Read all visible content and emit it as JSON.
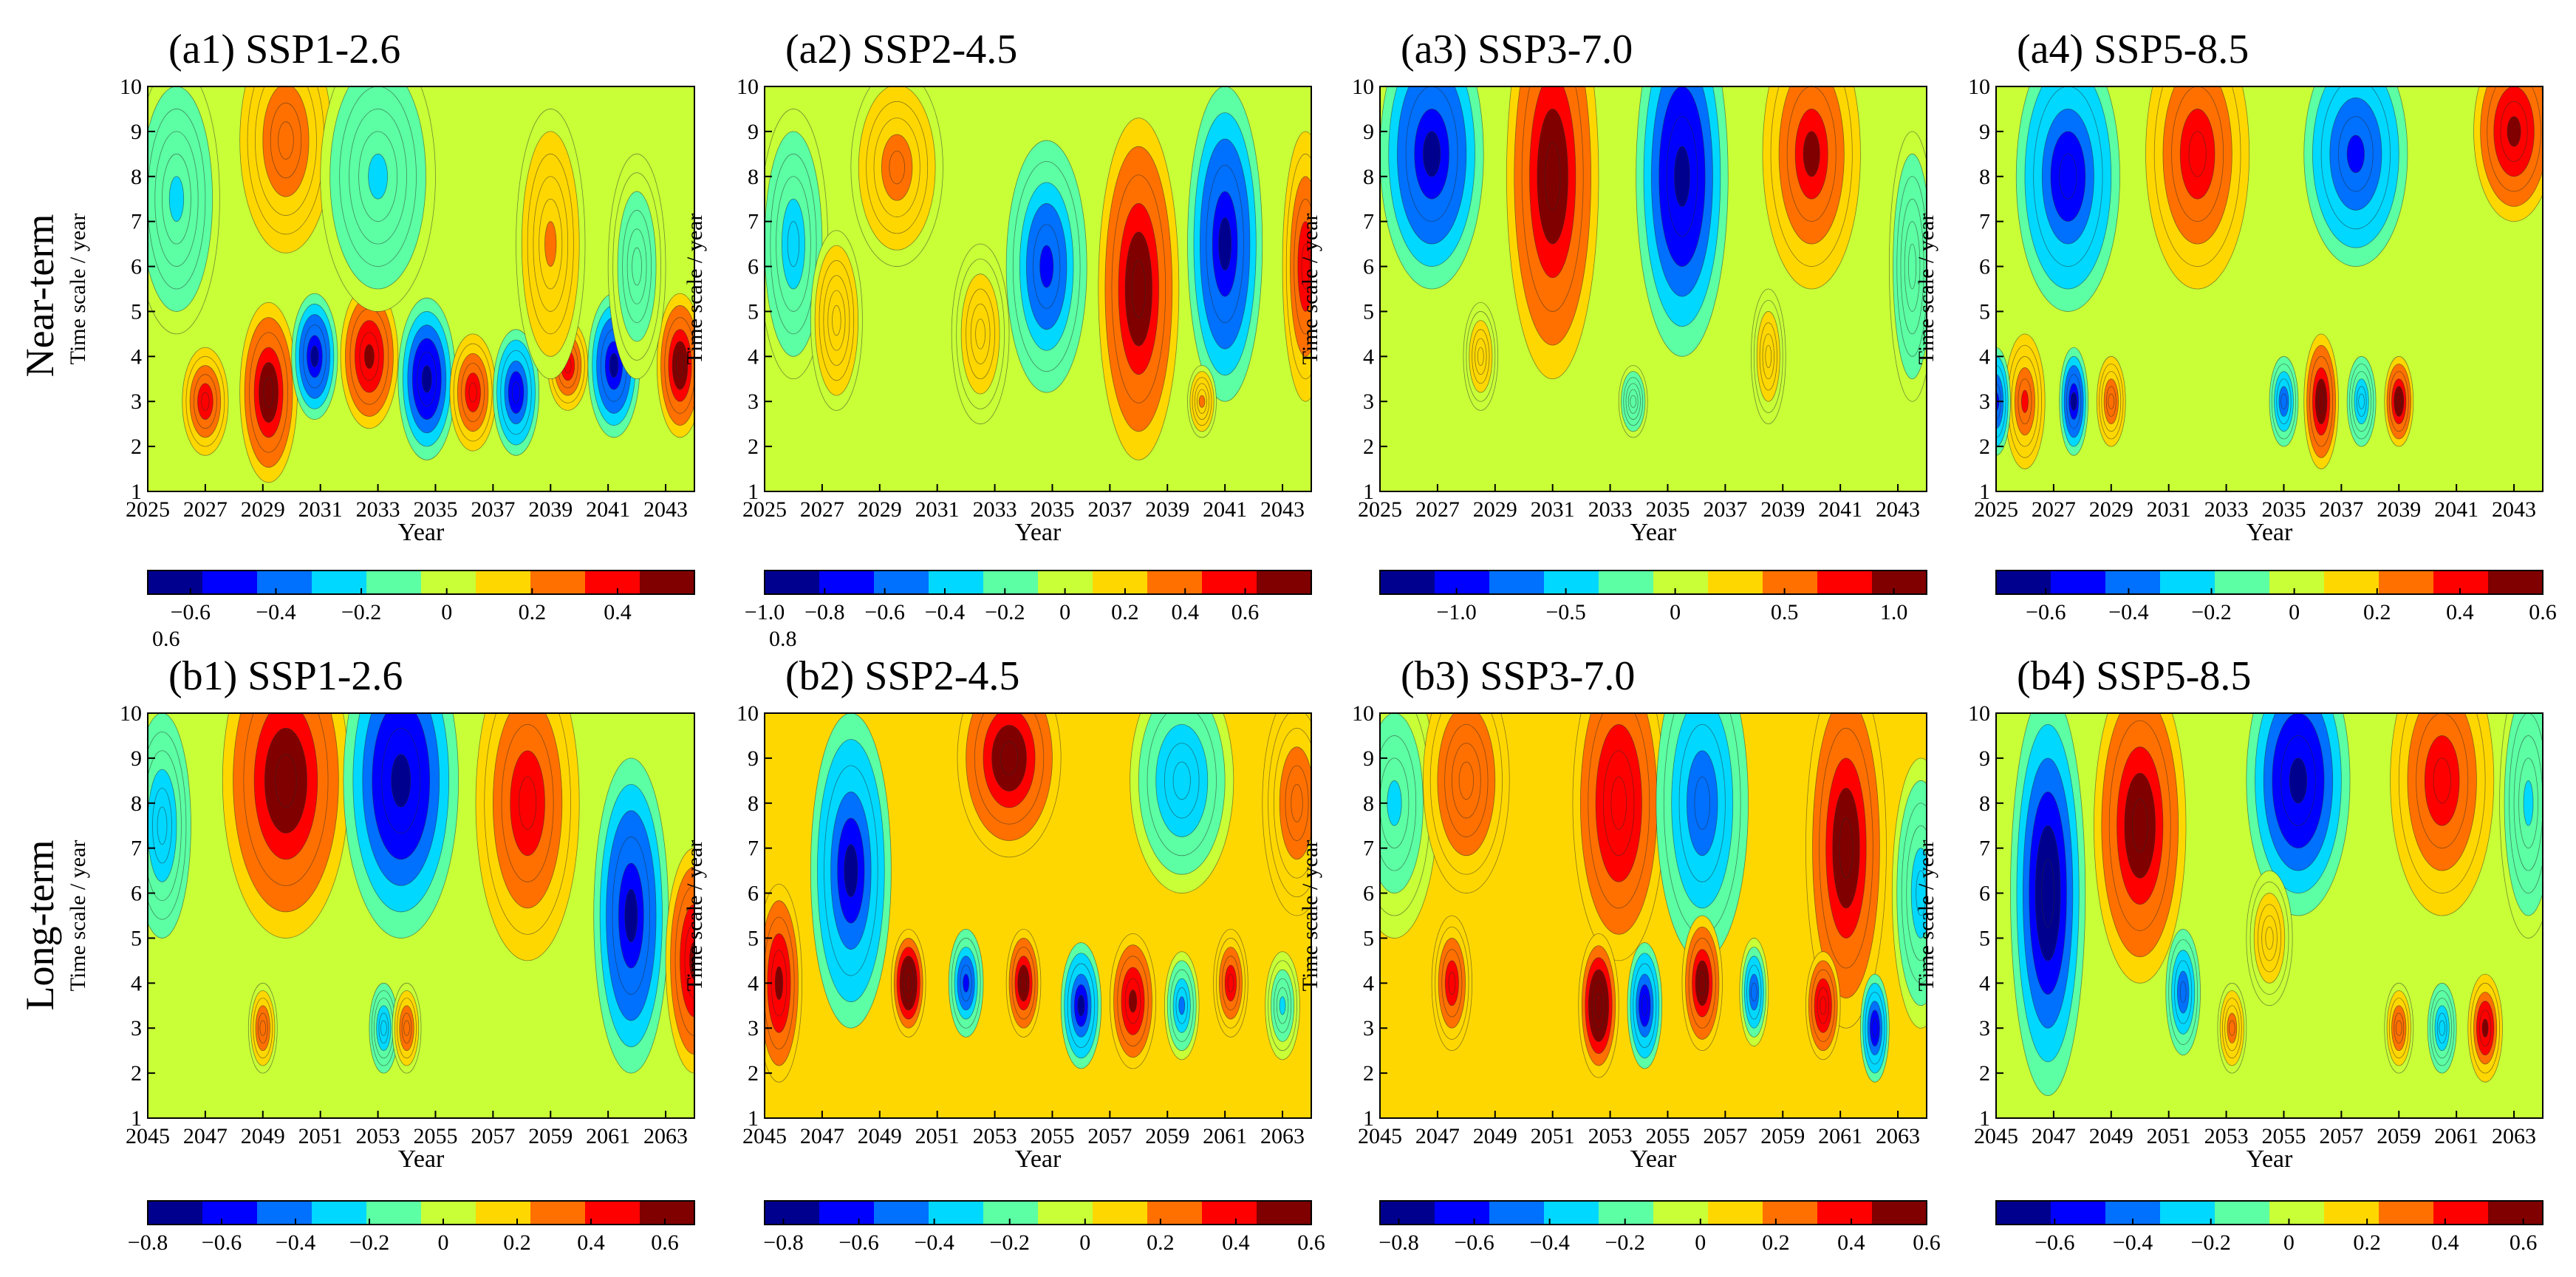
{
  "row_labels": [
    "Near-term",
    "Long-term"
  ],
  "y_axis_label": "Time scale / year",
  "x_axis_label": "Year",
  "colormap": [
    "#00008f",
    "#0000ff",
    "#0070ff",
    "#00d8ff",
    "#5cffa3",
    "#c8ff37",
    "#ffd700",
    "#ff7000",
    "#ff0000",
    "#800000"
  ],
  "chart_data": [
    {
      "id": "a1",
      "type": "heatmap",
      "title": "(a1) SSP1-2.6",
      "xlabel": "Year",
      "ylabel": "Time scale / year",
      "x_ticks": [
        "2025",
        "2027",
        "2029",
        "2031",
        "2033",
        "2035",
        "2037",
        "2039",
        "2041",
        "2043"
      ],
      "y_ticks": [
        "1",
        "2",
        "3",
        "4",
        "5",
        "6",
        "7",
        "8",
        "9",
        "10"
      ],
      "xlim": [
        2025,
        2044
      ],
      "ylim": [
        1,
        10
      ],
      "colorbar": {
        "ticks": [
          "−0.6",
          "−0.4",
          "−0.2",
          "0",
          "0.2",
          "0.4"
        ],
        "tick_values": [
          -0.6,
          -0.4,
          -0.2,
          0,
          0.2,
          0.4
        ],
        "range": [
          -0.7,
          0.58
        ],
        "extra_label": "0.6"
      },
      "features": [
        [
          2027.0,
          3.0,
          0.8,
          1.2,
          0.4
        ],
        [
          2029.2,
          3.2,
          1.0,
          2.0,
          0.55
        ],
        [
          2030.8,
          4.0,
          0.8,
          1.4,
          -0.6
        ],
        [
          2032.7,
          4.0,
          1.0,
          1.6,
          0.5
        ],
        [
          2034.7,
          3.5,
          1.0,
          1.8,
          -0.65
        ],
        [
          2036.3,
          3.2,
          0.8,
          1.3,
          0.45
        ],
        [
          2037.8,
          3.2,
          0.8,
          1.4,
          -0.55
        ],
        [
          2039.6,
          3.8,
          0.7,
          1.0,
          0.4
        ],
        [
          2041.2,
          3.8,
          0.9,
          1.6,
          -0.6
        ],
        [
          2043.5,
          3.8,
          0.8,
          1.6,
          0.55
        ],
        [
          2026.0,
          7.5,
          1.5,
          3.0,
          -0.2
        ],
        [
          2029.8,
          8.8,
          1.6,
          2.5,
          0.3
        ],
        [
          2033.0,
          8.0,
          2.0,
          3.0,
          -0.2
        ],
        [
          2039.0,
          6.5,
          1.2,
          3.0,
          0.2
        ],
        [
          2042.0,
          6.0,
          1.0,
          2.5,
          -0.15
        ]
      ]
    },
    {
      "id": "a2",
      "type": "heatmap",
      "title": "(a2) SSP2-4.5",
      "xlabel": "Year",
      "ylabel": "Time scale / year",
      "x_ticks": [
        "2025",
        "2027",
        "2029",
        "2031",
        "2033",
        "2035",
        "2037",
        "2039",
        "2041",
        "2043"
      ],
      "y_ticks": [
        "1",
        "2",
        "3",
        "4",
        "5",
        "6",
        "7",
        "8",
        "9",
        "10"
      ],
      "xlim": [
        2025,
        2044
      ],
      "ylim": [
        1,
        10
      ],
      "colorbar": {
        "ticks": [
          "−1.0",
          "−0.8",
          "−0.6",
          "−0.4",
          "−0.2",
          "0",
          "0.2",
          "0.4",
          "0.6"
        ],
        "tick_values": [
          -1.0,
          -0.8,
          -0.6,
          -0.4,
          -0.2,
          0,
          0.2,
          0.4,
          0.6
        ],
        "range": [
          -1.0,
          0.82
        ],
        "extra_label": "0.8"
      },
      "features": [
        [
          2029.6,
          8.2,
          1.6,
          2.2,
          0.35
        ],
        [
          2026.0,
          6.5,
          1.2,
          3.0,
          -0.35
        ],
        [
          2034.8,
          6.0,
          1.4,
          2.8,
          -0.65
        ],
        [
          2038.0,
          5.5,
          1.4,
          3.8,
          0.8
        ],
        [
          2041.0,
          6.5,
          1.3,
          3.5,
          -0.9
        ],
        [
          2043.8,
          6.0,
          0.8,
          3.0,
          0.6
        ],
        [
          2027.5,
          4.8,
          0.9,
          2.0,
          0.25
        ],
        [
          2032.5,
          4.5,
          1.0,
          2.0,
          0.2
        ],
        [
          2040.2,
          3.0,
          0.5,
          0.8,
          0.3
        ]
      ]
    },
    {
      "id": "a3",
      "type": "heatmap",
      "title": "(a3) SSP3-7.0",
      "xlabel": "Year",
      "ylabel": "Time scale / year",
      "x_ticks": [
        "2025",
        "2027",
        "2029",
        "2031",
        "2033",
        "2035",
        "2037",
        "2039",
        "2041",
        "2043"
      ],
      "y_ticks": [
        "1",
        "2",
        "3",
        "4",
        "5",
        "6",
        "7",
        "8",
        "9",
        "10"
      ],
      "xlim": [
        2025,
        2044
      ],
      "ylim": [
        1,
        10
      ],
      "colorbar": {
        "ticks": [
          "−1.0",
          "−0.5",
          "0",
          "0.5",
          "1.0"
        ],
        "tick_values": [
          -1.0,
          -0.5,
          0,
          0.5,
          1.0
        ],
        "range": [
          -1.35,
          1.15
        ]
      },
      "features": [
        [
          2026.8,
          8.5,
          1.8,
          3.0,
          -1.2
        ],
        [
          2031.0,
          8.0,
          1.6,
          4.5,
          1.1
        ],
        [
          2035.5,
          8.0,
          1.6,
          4.0,
          -1.25
        ],
        [
          2040.0,
          8.5,
          1.7,
          3.0,
          0.9
        ],
        [
          2043.5,
          6.0,
          0.8,
          3.0,
          -0.3
        ],
        [
          2028.5,
          4.0,
          0.6,
          1.2,
          0.3
        ],
        [
          2033.8,
          3.0,
          0.5,
          0.8,
          -0.3
        ],
        [
          2038.5,
          4.0,
          0.6,
          1.5,
          0.3
        ]
      ]
    },
    {
      "id": "a4",
      "type": "heatmap",
      "title": "(a4) SSP5-8.5",
      "xlabel": "Year",
      "ylabel": "Time scale / year",
      "x_ticks": [
        "2025",
        "2027",
        "2029",
        "2031",
        "2033",
        "2035",
        "2037",
        "2039",
        "2041",
        "2043"
      ],
      "y_ticks": [
        "1",
        "2",
        "3",
        "4",
        "5",
        "6",
        "7",
        "8",
        "9",
        "10"
      ],
      "xlim": [
        2025,
        2044
      ],
      "ylim": [
        1,
        10
      ],
      "colorbar": {
        "ticks": [
          "−0.6",
          "−0.4",
          "−0.2",
          "0",
          "0.2",
          "0.4",
          "0.6"
        ],
        "tick_values": [
          -0.6,
          -0.4,
          -0.2,
          0,
          0.2,
          0.4,
          0.6
        ],
        "range": [
          -0.72,
          0.6
        ]
      },
      "features": [
        [
          2027.5,
          8.0,
          1.8,
          3.0,
          -0.55
        ],
        [
          2032.0,
          8.5,
          1.8,
          3.0,
          0.45
        ],
        [
          2037.5,
          8.5,
          1.8,
          2.5,
          -0.5
        ],
        [
          2043.0,
          9.0,
          1.4,
          2.0,
          0.55
        ],
        [
          2026.0,
          3.0,
          0.7,
          1.5,
          0.35
        ],
        [
          2027.7,
          3.0,
          0.5,
          1.2,
          -0.6
        ],
        [
          2029.0,
          3.0,
          0.5,
          1.0,
          0.3
        ],
        [
          2036.3,
          3.0,
          0.6,
          1.5,
          0.6
        ],
        [
          2039.0,
          3.0,
          0.5,
          1.0,
          0.6
        ],
        [
          2025.0,
          3.0,
          0.5,
          1.2,
          -0.5
        ],
        [
          2035.0,
          3.0,
          0.5,
          1.0,
          -0.4
        ],
        [
          2037.7,
          3.0,
          0.5,
          1.0,
          -0.3
        ]
      ]
    },
    {
      "id": "b1",
      "type": "heatmap",
      "title": "(b1) SSP1-2.6",
      "xlabel": "Year",
      "ylabel": "Time scale / year",
      "x_ticks": [
        "2045",
        "2047",
        "2049",
        "2051",
        "2053",
        "2055",
        "2057",
        "2059",
        "2061",
        "2063"
      ],
      "y_ticks": [
        "1",
        "2",
        "3",
        "4",
        "5",
        "6",
        "7",
        "8",
        "9",
        "10"
      ],
      "xlim": [
        2045,
        2064
      ],
      "ylim": [
        1,
        10
      ],
      "colorbar": {
        "ticks": [
          "−0.8",
          "−0.6",
          "−0.4",
          "−0.2",
          "0",
          "0.2",
          "0.4",
          "0.6"
        ],
        "tick_values": [
          -0.8,
          -0.6,
          -0.4,
          -0.2,
          0,
          0.2,
          0.4,
          0.6
        ],
        "range": [
          -0.8,
          0.68
        ]
      },
      "features": [
        [
          2049.8,
          8.5,
          2.2,
          3.5,
          0.65
        ],
        [
          2053.8,
          8.5,
          2.0,
          3.5,
          -0.75
        ],
        [
          2058.2,
          8.0,
          1.8,
          3.5,
          0.5
        ],
        [
          2061.8,
          5.5,
          1.3,
          3.5,
          -0.7
        ],
        [
          2064.0,
          4.5,
          1.0,
          2.5,
          0.6
        ],
        [
          2045.5,
          7.5,
          1.0,
          2.5,
          -0.3
        ],
        [
          2049.0,
          3.0,
          0.5,
          1.0,
          0.35
        ],
        [
          2053.2,
          3.0,
          0.5,
          1.0,
          -0.3
        ],
        [
          2054.0,
          3.0,
          0.5,
          1.0,
          0.35
        ]
      ]
    },
    {
      "id": "b2",
      "type": "heatmap",
      "title": "(b2) SSP2-4.5",
      "xlabel": "Year",
      "ylabel": "Time scale / year",
      "x_ticks": [
        "2045",
        "2047",
        "2049",
        "2051",
        "2053",
        "2055",
        "2057",
        "2059",
        "2061",
        "2063"
      ],
      "y_ticks": [
        "1",
        "2",
        "3",
        "4",
        "5",
        "6",
        "7",
        "8",
        "9",
        "10"
      ],
      "xlim": [
        2045,
        2064
      ],
      "ylim": [
        1,
        10
      ],
      "colorbar": {
        "ticks": [
          "−0.8",
          "−0.6",
          "−0.4",
          "−0.2",
          "0",
          "0.2",
          "0.4",
          "0.6"
        ],
        "tick_values": [
          -0.8,
          -0.6,
          -0.4,
          -0.2,
          0,
          0.2,
          0.4,
          0.6
        ],
        "range": [
          -0.85,
          0.6
        ]
      },
      "features": [
        [
          2045.5,
          4.0,
          0.8,
          2.2,
          0.5
        ],
        [
          2048.0,
          6.5,
          1.4,
          3.5,
          -0.75
        ],
        [
          2053.5,
          9.0,
          1.8,
          2.2,
          0.55
        ],
        [
          2059.5,
          8.5,
          1.8,
          2.5,
          -0.4
        ],
        [
          2063.5,
          8.0,
          1.2,
          2.5,
          0.25
        ],
        [
          2050.0,
          4.0,
          0.6,
          1.2,
          0.65
        ],
        [
          2052.0,
          4.0,
          0.6,
          1.2,
          -0.6
        ],
        [
          2054.0,
          4.0,
          0.6,
          1.2,
          0.55
        ],
        [
          2056.0,
          3.5,
          0.7,
          1.4,
          -0.75
        ],
        [
          2057.8,
          3.6,
          0.8,
          1.5,
          0.5
        ],
        [
          2059.5,
          3.5,
          0.6,
          1.2,
          -0.45
        ],
        [
          2061.2,
          4.0,
          0.6,
          1.2,
          0.4
        ],
        [
          2063.0,
          3.5,
          0.6,
          1.2,
          -0.3
        ]
      ]
    },
    {
      "id": "b3",
      "type": "heatmap",
      "title": "(b3) SSP3-7.0",
      "xlabel": "Year",
      "ylabel": "Time scale / year",
      "x_ticks": [
        "2045",
        "2047",
        "2049",
        "2051",
        "2053",
        "2055",
        "2057",
        "2059",
        "2061",
        "2063"
      ],
      "y_ticks": [
        "1",
        "2",
        "3",
        "4",
        "5",
        "6",
        "7",
        "8",
        "9",
        "10"
      ],
      "xlim": [
        2045,
        2064
      ],
      "ylim": [
        1,
        10
      ],
      "colorbar": {
        "ticks": [
          "−0.8",
          "−0.6",
          "−0.4",
          "−0.2",
          "0",
          "0.2",
          "0.4",
          "0.6"
        ],
        "tick_values": [
          -0.8,
          -0.6,
          -0.4,
          -0.2,
          0,
          0.2,
          0.4,
          0.6
        ],
        "range": [
          -0.85,
          0.6
        ]
      },
      "features": [
        [
          2045.5,
          8.0,
          1.5,
          3.0,
          -0.3
        ],
        [
          2048.0,
          8.5,
          1.5,
          2.5,
          0.3
        ],
        [
          2053.3,
          8.0,
          1.6,
          3.5,
          0.45
        ],
        [
          2056.2,
          8.0,
          1.6,
          3.5,
          -0.55
        ],
        [
          2061.2,
          7.0,
          1.4,
          4.0,
          0.55
        ],
        [
          2063.8,
          6.0,
          1.0,
          3.0,
          -0.35
        ],
        [
          2047.5,
          4.0,
          0.7,
          1.5,
          0.4
        ],
        [
          2052.6,
          3.5,
          0.7,
          1.6,
          0.65
        ],
        [
          2054.2,
          3.5,
          0.6,
          1.4,
          -0.7
        ],
        [
          2056.2,
          4.0,
          0.7,
          1.5,
          0.55
        ],
        [
          2058.0,
          3.8,
          0.5,
          1.2,
          -0.5
        ],
        [
          2060.4,
          3.5,
          0.6,
          1.2,
          0.45
        ],
        [
          2062.2,
          3.0,
          0.5,
          1.2,
          -0.7
        ]
      ]
    },
    {
      "id": "b4",
      "type": "heatmap",
      "title": "(b4) SSP5-8.5",
      "xlabel": "Year",
      "ylabel": "Time scale / year",
      "x_ticks": [
        "2045",
        "2047",
        "2049",
        "2051",
        "2053",
        "2055",
        "2057",
        "2059",
        "2061",
        "2063"
      ],
      "y_ticks": [
        "1",
        "2",
        "3",
        "4",
        "5",
        "6",
        "7",
        "8",
        "9",
        "10"
      ],
      "xlim": [
        2045,
        2064
      ],
      "ylim": [
        1,
        10
      ],
      "colorbar": {
        "ticks": [
          "−0.6",
          "−0.4",
          "−0.2",
          "0",
          "0.2",
          "0.4",
          "0.6"
        ],
        "tick_values": [
          -0.6,
          -0.4,
          -0.2,
          0,
          0.2,
          0.4,
          0.6
        ],
        "range": [
          -0.75,
          0.65
        ]
      },
      "features": [
        [
          2046.8,
          6.0,
          1.3,
          4.5,
          -0.75
        ],
        [
          2050.0,
          7.5,
          1.6,
          3.5,
          0.6
        ],
        [
          2055.5,
          8.5,
          1.8,
          3.0,
          -0.7
        ],
        [
          2060.5,
          8.5,
          1.8,
          3.0,
          0.5
        ],
        [
          2063.5,
          8.0,
          1.0,
          3.0,
          -0.2
        ],
        [
          2051.5,
          3.8,
          0.6,
          1.4,
          -0.45
        ],
        [
          2053.2,
          3.0,
          0.5,
          1.0,
          0.3
        ],
        [
          2054.5,
          5.0,
          0.8,
          1.5,
          0.2
        ],
        [
          2059.0,
          3.0,
          0.5,
          1.0,
          0.35
        ],
        [
          2062.0,
          3.0,
          0.6,
          1.2,
          0.55
        ],
        [
          2060.5,
          3.0,
          0.5,
          1.0,
          -0.3
        ]
      ]
    }
  ]
}
